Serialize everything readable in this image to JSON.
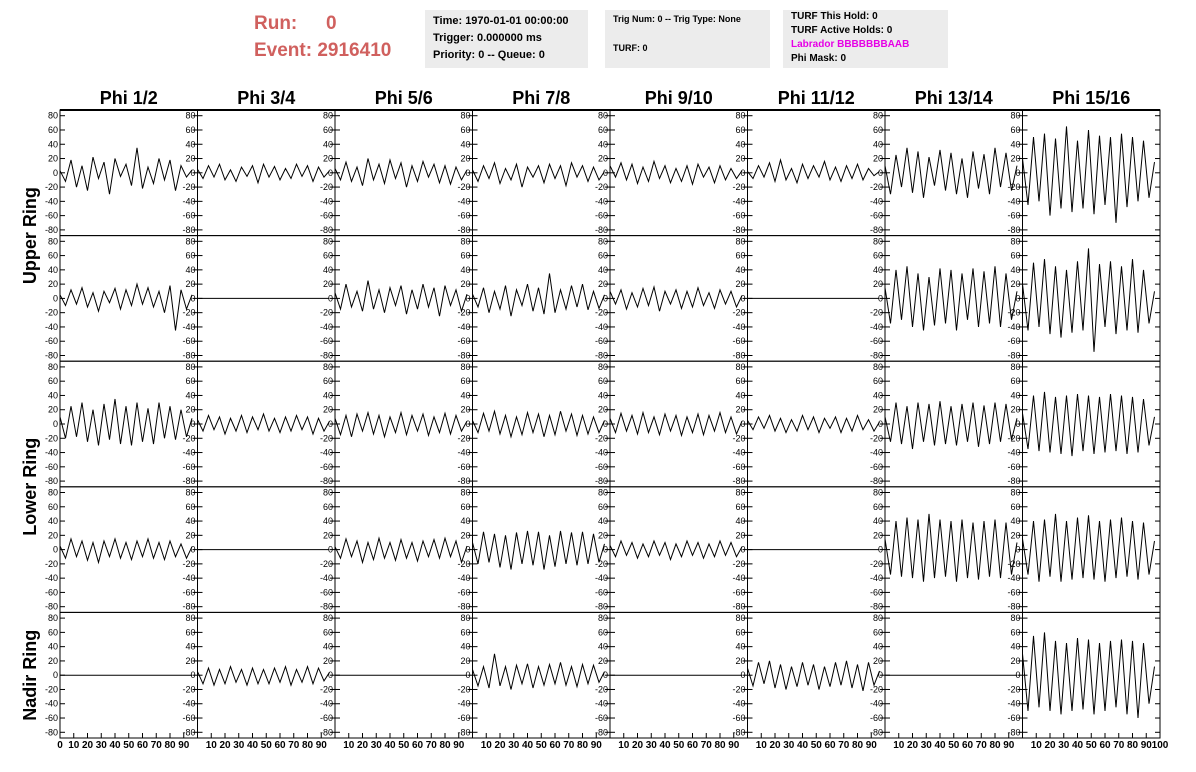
{
  "header": {
    "run_label": "Run:",
    "run": 0,
    "event_label": "Event:",
    "event": 2916410,
    "info": [
      [
        "Time: 1970-01-01 00:00:00",
        "Trigger: 0.000000 ms",
        "Priority: 0 -- Queue: 0"
      ],
      [
        "Trig Num: 0 -- Trig Type: None",
        "TURF: 0"
      ],
      [
        "TURF This Hold: 0",
        "TURF Active Holds: 0",
        "Labrador BBBBBBBAAB",
        "Phi Mask: 0"
      ]
    ]
  },
  "columns": [
    "Phi 1/2",
    "Phi 3/4",
    "Phi 5/6",
    "Phi 7/8",
    "Phi 9/10",
    "Phi 11/12",
    "Phi 13/14",
    "Phi 15/16"
  ],
  "ring_labels": [
    "Upper Ring",
    "Lower Ring",
    "Nadir Ring"
  ],
  "axes": {
    "xlim": [
      0,
      100
    ],
    "xticks": [
      0,
      10,
      20,
      30,
      40,
      50,
      60,
      70,
      80,
      90,
      100
    ],
    "ylim": [
      -88,
      88
    ],
    "yticks": [
      -80,
      -60,
      -40,
      -20,
      0,
      20,
      40,
      60,
      80
    ]
  },
  "x": [
    0,
    4,
    8,
    12,
    16,
    20,
    24,
    28,
    32,
    36,
    40,
    44,
    48,
    52,
    56,
    60,
    64,
    68,
    72,
    76,
    80,
    84,
    88,
    92,
    96
  ],
  "panels": [
    [
      [
        3,
        -12,
        18,
        -20,
        10,
        -25,
        22,
        -8,
        15,
        -30,
        20,
        -5,
        12,
        -18,
        35,
        -22,
        8,
        -15,
        20,
        -10,
        18,
        -25,
        10,
        -6,
        4
      ],
      [
        5,
        -8,
        10,
        -6,
        12,
        -10,
        4,
        -12,
        8,
        -5,
        10,
        -14,
        12,
        -6,
        9,
        -10,
        6,
        -8,
        12,
        -5,
        10,
        -12,
        8,
        -6,
        3
      ],
      [
        6,
        -10,
        15,
        -12,
        8,
        -18,
        20,
        -10,
        12,
        -15,
        18,
        -8,
        14,
        -20,
        10,
        -12,
        16,
        -6,
        12,
        -14,
        10,
        -16,
        8,
        -10,
        4
      ],
      [
        4,
        -12,
        10,
        -8,
        14,
        -15,
        6,
        -10,
        12,
        -20,
        8,
        -6,
        10,
        -14,
        12,
        -8,
        10,
        -18,
        14,
        -6,
        10,
        -12,
        8,
        -10,
        2
      ],
      [
        10,
        -6,
        14,
        -10,
        12,
        -15,
        8,
        -12,
        16,
        -8,
        10,
        -14,
        6,
        -12,
        10,
        -16,
        12,
        -6,
        8,
        -14,
        10,
        -10,
        6,
        -8,
        3
      ],
      [
        2,
        -8,
        10,
        -6,
        14,
        -12,
        18,
        -10,
        6,
        -14,
        12,
        -8,
        10,
        -6,
        16,
        -10,
        8,
        -12,
        10,
        -8,
        12,
        -10,
        6,
        -4,
        2
      ],
      [
        10,
        -30,
        25,
        -20,
        35,
        -28,
        30,
        -35,
        22,
        -18,
        32,
        -25,
        28,
        -30,
        20,
        -35,
        30,
        -22,
        26,
        -30,
        35,
        -20,
        28,
        -25,
        10
      ],
      [
        20,
        -45,
        50,
        -40,
        55,
        -60,
        48,
        -50,
        65,
        -55,
        45,
        -50,
        60,
        -58,
        52,
        -45,
        50,
        -70,
        55,
        -48,
        50,
        -40,
        45,
        -35,
        15
      ]
    ],
    [
      [
        5,
        -10,
        12,
        -8,
        15,
        -12,
        8,
        -18,
        10,
        -6,
        14,
        -15,
        12,
        -10,
        20,
        -8,
        15,
        -12,
        10,
        -20,
        18,
        -45,
        12,
        -15,
        5
      ],
      [
        0,
        0,
        0,
        0,
        0,
        0,
        0,
        0,
        0,
        0,
        0,
        0,
        0,
        0,
        0,
        0,
        0,
        0,
        0,
        0,
        0,
        0,
        0,
        0,
        0
      ],
      [
        8,
        -15,
        20,
        -12,
        10,
        -18,
        25,
        -15,
        12,
        -20,
        15,
        -10,
        18,
        -22,
        12,
        -15,
        20,
        -12,
        15,
        -25,
        18,
        -10,
        12,
        -18,
        6
      ],
      [
        6,
        -12,
        15,
        -20,
        10,
        -15,
        18,
        -25,
        12,
        -10,
        20,
        -18,
        15,
        -22,
        35,
        -20,
        12,
        -15,
        18,
        -12,
        20,
        -16,
        10,
        -14,
        5
      ],
      [
        10,
        -8,
        12,
        -15,
        8,
        -12,
        14,
        -10,
        16,
        -18,
        10,
        -8,
        12,
        -14,
        10,
        -12,
        15,
        -10,
        8,
        -14,
        12,
        -8,
        10,
        -12,
        4
      ],
      [
        0,
        0,
        0,
        0,
        0,
        0,
        0,
        0,
        0,
        0,
        0,
        0,
        0,
        0,
        0,
        0,
        0,
        0,
        0,
        0,
        0,
        0,
        0,
        0,
        0
      ],
      [
        15,
        -35,
        40,
        -30,
        45,
        -40,
        35,
        -45,
        30,
        -38,
        42,
        -35,
        40,
        -45,
        35,
        -30,
        42,
        -40,
        38,
        -35,
        45,
        -40,
        35,
        -30,
        10
      ],
      [
        20,
        -45,
        50,
        -40,
        55,
        -50,
        45,
        -55,
        40,
        -48,
        52,
        -45,
        70,
        -75,
        48,
        -40,
        52,
        -50,
        45,
        -45,
        55,
        -48,
        40,
        -35,
        10
      ]
    ],
    [
      [
        10,
        -20,
        25,
        -18,
        30,
        -25,
        20,
        -30,
        28,
        -22,
        35,
        -28,
        25,
        -30,
        30,
        -25,
        22,
        -28,
        30,
        -20,
        25,
        -22,
        20,
        -18,
        8
      ],
      [
        6,
        -10,
        12,
        -8,
        10,
        -14,
        8,
        -10,
        12,
        -12,
        10,
        -8,
        14,
        -10,
        8,
        -12,
        10,
        -10,
        12,
        -8,
        10,
        -14,
        8,
        -10,
        4
      ],
      [
        8,
        -15,
        12,
        -18,
        14,
        -10,
        16,
        -14,
        12,
        -18,
        10,
        -12,
        16,
        -15,
        12,
        -10,
        14,
        -16,
        10,
        -12,
        15,
        -14,
        12,
        -10,
        4
      ],
      [
        5,
        -12,
        15,
        -10,
        18,
        -14,
        12,
        -18,
        10,
        -15,
        16,
        -12,
        14,
        -18,
        12,
        -15,
        18,
        -10,
        14,
        -16,
        12,
        -14,
        10,
        -12,
        5
      ],
      [
        8,
        -12,
        15,
        -10,
        12,
        -14,
        16,
        -12,
        10,
        -15,
        14,
        -10,
        12,
        -16,
        10,
        -12,
        14,
        -15,
        12,
        -10,
        16,
        -12,
        10,
        -14,
        4
      ],
      [
        5,
        -8,
        10,
        -6,
        12,
        -10,
        8,
        -12,
        6,
        -10,
        12,
        -8,
        10,
        -12,
        8,
        -6,
        10,
        -12,
        8,
        -10,
        12,
        -8,
        6,
        -10,
        3
      ],
      [
        10,
        -25,
        30,
        -28,
        25,
        -35,
        30,
        -25,
        28,
        -30,
        32,
        -28,
        25,
        -30,
        28,
        -25,
        30,
        -32,
        26,
        -28,
        30,
        -25,
        28,
        -22,
        8
      ],
      [
        15,
        -35,
        40,
        -38,
        45,
        -40,
        38,
        -42,
        40,
        -45,
        42,
        -38,
        40,
        -42,
        38,
        -40,
        42,
        -38,
        40,
        -42,
        38,
        -40,
        35,
        -30,
        10
      ]
    ],
    [
      [
        5,
        -12,
        15,
        -10,
        12,
        -15,
        10,
        -18,
        12,
        -10,
        15,
        -12,
        10,
        -14,
        12,
        -10,
        15,
        -12,
        10,
        -14,
        12,
        -10,
        8,
        -12,
        4
      ],
      [
        0,
        0,
        0,
        0,
        0,
        0,
        0,
        0,
        0,
        0,
        0,
        0,
        0,
        0,
        0,
        0,
        0,
        0,
        0,
        0,
        0,
        0,
        0,
        0,
        0
      ],
      [
        4,
        -12,
        15,
        -10,
        12,
        -18,
        10,
        -14,
        16,
        -12,
        10,
        -15,
        14,
        -12,
        10,
        -16,
        12,
        -10,
        14,
        -12,
        16,
        -10,
        12,
        -18,
        5
      ],
      [
        10,
        -20,
        25,
        -18,
        22,
        -25,
        20,
        -28,
        24,
        -20,
        26,
        -22,
        25,
        -28,
        20,
        -24,
        26,
        -20,
        24,
        -22,
        25,
        -20,
        22,
        -18,
        8
      ],
      [
        6,
        -10,
        12,
        -8,
        10,
        -12,
        8,
        -10,
        12,
        -8,
        10,
        -14,
        8,
        -10,
        12,
        -8,
        10,
        -12,
        8,
        -10,
        12,
        -8,
        10,
        -10,
        4
      ],
      [
        0,
        0,
        0,
        0,
        0,
        0,
        0,
        0,
        0,
        0,
        0,
        0,
        0,
        0,
        0,
        0,
        0,
        0,
        0,
        0,
        0,
        0,
        0,
        0,
        0
      ],
      [
        15,
        -35,
        40,
        -38,
        45,
        -40,
        42,
        -45,
        50,
        -40,
        42,
        -38,
        40,
        -45,
        42,
        -40,
        38,
        -42,
        40,
        -38,
        42,
        -40,
        38,
        -35,
        10
      ],
      [
        15,
        -35,
        40,
        -45,
        42,
        -38,
        50,
        -45,
        40,
        -42,
        45,
        -40,
        48,
        -42,
        40,
        -45,
        42,
        -40,
        45,
        -38,
        40,
        -42,
        38,
        -35,
        12
      ]
    ],
    [
      [
        0,
        0,
        0,
        0,
        0,
        0,
        0,
        0,
        0,
        0,
        0,
        0,
        0,
        0,
        0,
        0,
        0,
        0,
        0,
        0,
        0,
        0,
        0,
        0,
        0
      ],
      [
        5,
        -12,
        10,
        -14,
        8,
        -12,
        12,
        -10,
        8,
        -14,
        10,
        -12,
        8,
        -12,
        10,
        -10,
        12,
        -14,
        8,
        -10,
        12,
        -12,
        10,
        -8,
        4
      ],
      [
        0,
        0,
        0,
        0,
        0,
        0,
        0,
        0,
        0,
        0,
        0,
        0,
        0,
        0,
        0,
        0,
        0,
        0,
        0,
        0,
        0,
        0,
        0,
        0,
        0
      ],
      [
        8,
        -15,
        12,
        -18,
        30,
        -15,
        12,
        -20,
        14,
        -12,
        16,
        -18,
        12,
        -14,
        15,
        -12,
        18,
        -14,
        12,
        -16,
        15,
        -12,
        14,
        -10,
        5
      ],
      [
        0,
        0,
        0,
        0,
        0,
        0,
        0,
        0,
        0,
        0,
        0,
        0,
        0,
        0,
        0,
        0,
        0,
        0,
        0,
        0,
        0,
        0,
        0,
        0,
        0
      ],
      [
        10,
        -15,
        18,
        -12,
        20,
        -18,
        15,
        -20,
        12,
        -16,
        18,
        -14,
        15,
        -20,
        12,
        -16,
        18,
        -14,
        20,
        -18,
        15,
        -22,
        18,
        -14,
        6
      ],
      [
        0,
        0,
        0,
        0,
        0,
        0,
        0,
        0,
        0,
        0,
        0,
        0,
        0,
        0,
        0,
        0,
        0,
        0,
        0,
        0,
        0,
        0,
        0,
        0,
        0
      ],
      [
        30,
        -50,
        55,
        -45,
        60,
        -50,
        48,
        -55,
        45,
        -50,
        52,
        -48,
        50,
        -55,
        45,
        -50,
        48,
        -45,
        50,
        -55,
        48,
        -60,
        45,
        -40,
        12
      ]
    ]
  ]
}
